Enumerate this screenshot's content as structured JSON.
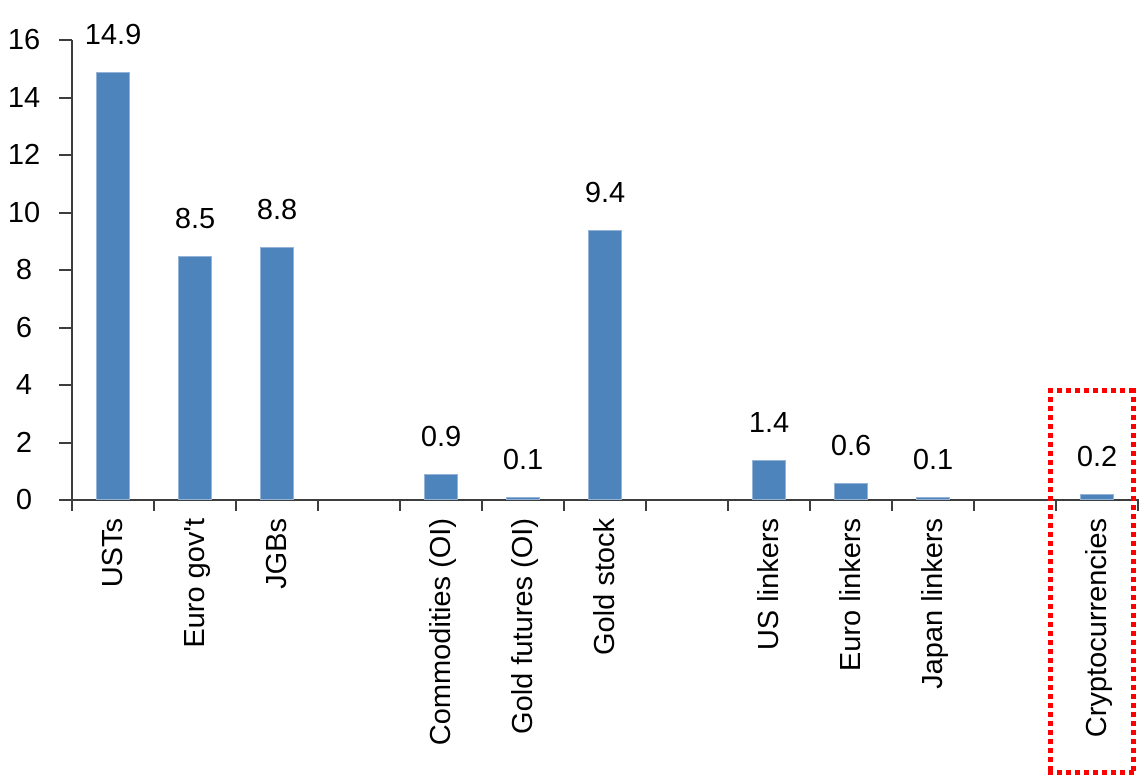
{
  "chart_data": {
    "type": "bar",
    "title": "",
    "categories": [
      "USTs",
      "Euro gov't",
      "JGBs",
      "Commodities (OI)",
      "Gold futures (OI)",
      "Gold stock",
      "US linkers",
      "Euro linkers",
      "Japan linkers",
      "Cryptocurrencies"
    ],
    "values": [
      14.9,
      8.5,
      8.8,
      0.9,
      0.1,
      9.4,
      1.4,
      0.6,
      0.1,
      0.2
    ],
    "value_labels": [
      "14.9",
      "8.5",
      "8.8",
      "0.9",
      "0.1",
      "9.4",
      "1.4",
      "0.6",
      "0.1",
      "0.2"
    ],
    "groups": [
      [
        "USTs",
        "Euro gov't",
        "JGBs"
      ],
      [
        "Commodities (OI)",
        "Gold futures (OI)",
        "Gold stock"
      ],
      [
        "US linkers",
        "Euro linkers",
        "Japan linkers"
      ],
      [
        "Cryptocurrencies"
      ]
    ],
    "xlabel": "",
    "ylabel": "",
    "ylim": [
      0,
      16
    ],
    "yticks": [
      0,
      2,
      4,
      6,
      8,
      10,
      12,
      14,
      16
    ],
    "grid": false,
    "legend": false,
    "category_label_rotation_deg": -90,
    "bar_color": "#4E84BC",
    "bar_border_color": "#95B3D7",
    "axis_color": "#3D3D3D",
    "text_color": "#000000",
    "highlight": {
      "category": "Cryptocurrencies",
      "box_color": "#FF0000",
      "box_style": "square-dotted"
    }
  }
}
